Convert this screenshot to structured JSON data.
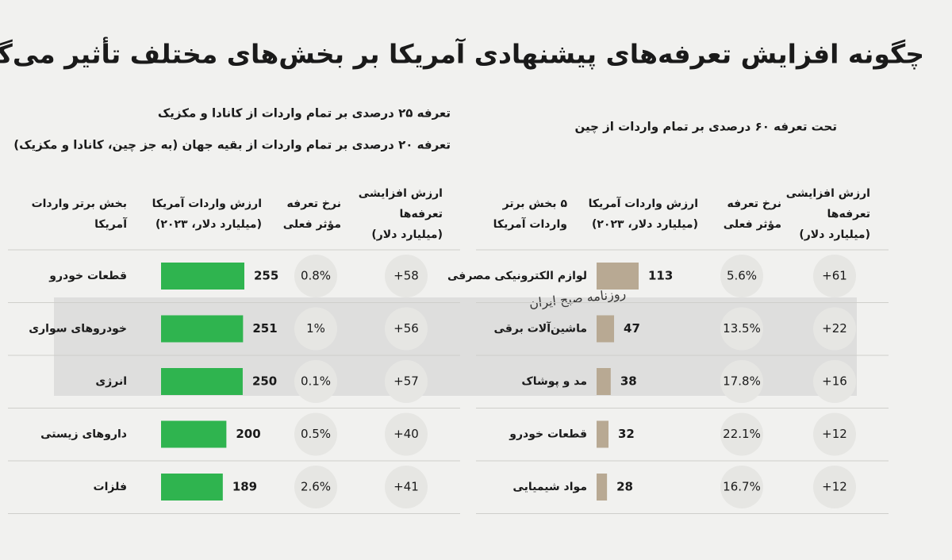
{
  "title": "چگونه افزایش تعرفه‌های پیشنهادی آمریکا بر بخش‌های مختلف تأثیر می‌گذارد",
  "watermark": "روزنامه صبح ایران",
  "chart_data": [
    {
      "type": "bar",
      "subtitles": [
        "تعرفه ۲۵ درصدی بر تمام واردات از کانادا و مکزیک",
        "تعرفه ۲۰ درصدی بر تمام واردات از بقیه جهان (به جز چین، کانادا و مکزیک)"
      ],
      "headers": {
        "category": [
          "بخش برتر واردات",
          "آمریکا"
        ],
        "value": [
          "ارزش واردات آمریکا",
          "(میلیارد دلار، ۲۰۲۳)"
        ],
        "rate": [
          "نرخ تعرفه",
          "مؤثر فعلی"
        ],
        "increase": [
          "ارزش افزایشی",
          "تعرفه‌ها",
          "(میلیارد دلار)"
        ]
      },
      "categories": [
        "قطعات خودرو",
        "خودروهای سواری",
        "انرژی",
        "داروهای زیستی",
        "فلزات"
      ],
      "values": [
        255,
        251,
        250,
        200,
        189
      ],
      "rates": [
        "0.8%",
        "1%",
        "0.1%",
        "0.5%",
        "2.6%"
      ],
      "increases": [
        "+58",
        "+56",
        "+57",
        "+40",
        "+41"
      ],
      "color": "#2fb44f"
    },
    {
      "type": "bar",
      "subtitles": [
        "تحت تعرفه ۶۰ درصدی بر تمام واردات از چین"
      ],
      "headers": {
        "category": [
          "۵ بخش برتر",
          "واردات آمریکا"
        ],
        "value": [
          "ارزش واردات آمریکا",
          "(میلیارد دلار، ۲۰۲۳)"
        ],
        "rate": [
          "نرخ تعرفه",
          "مؤثر فعلی"
        ],
        "increase": [
          "ارزش افزایشی",
          "تعرفه‌ها",
          "(میلیارد دلار)"
        ]
      },
      "categories": [
        "لوازم الکترونیکی مصرفی",
        "ماشین‌آلات برقی",
        "مد و پوشاک",
        "قطعات خودرو",
        "مواد شیمیایی"
      ],
      "values": [
        113,
        47,
        38,
        32,
        28
      ],
      "rates": [
        "5.6%",
        "13.5%",
        "17.8%",
        "22.1%",
        "16.7%"
      ],
      "increases": [
        "+61",
        "+22",
        "+16",
        "+12",
        "+12"
      ],
      "color": "#b8a993"
    }
  ]
}
